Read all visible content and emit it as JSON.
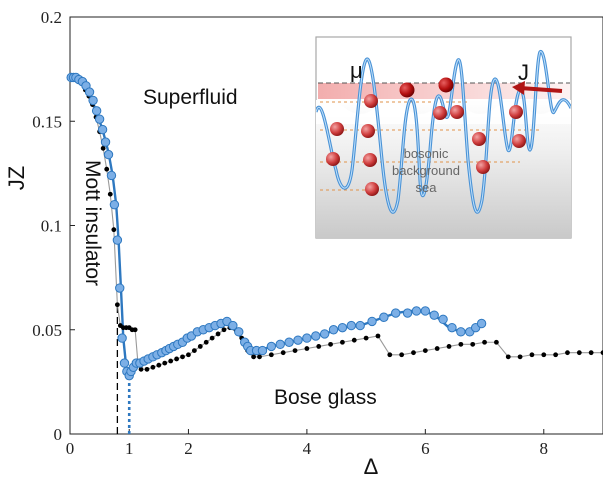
{
  "chart_data": {
    "type": "scatter",
    "xlabel": "Δ",
    "ylabel": "JZ",
    "xlim": [
      0,
      9
    ],
    "ylim": [
      0,
      0.2
    ],
    "xticks": [
      0,
      1,
      2,
      4,
      6,
      8
    ],
    "yticks": [
      0,
      0.05,
      0.1,
      0.15,
      0.2
    ],
    "ytick_labels": [
      "0",
      "0.05",
      "0.1",
      "0.15",
      "0.2"
    ],
    "grid": false,
    "colors": {
      "blue": "#2e78c0",
      "blue_marker": "#7cafe6",
      "black": "#000000",
      "gray_line": "#9a9a9a"
    },
    "series": [
      {
        "style": "blue-circles",
        "x": [
          0.02,
          0.06,
          0.1,
          0.15,
          0.21,
          0.27,
          0.33,
          0.39,
          0.45,
          0.5,
          0.55,
          0.6,
          0.65,
          0.7,
          0.75,
          0.8,
          0.84,
          0.88,
          0.92,
          0.96,
          1.0,
          1.03,
          1.07,
          1.12,
          1.18,
          1.25,
          1.32,
          1.4,
          1.47,
          1.55,
          1.62,
          1.68,
          1.75,
          1.82,
          1.9,
          1.98,
          2.05,
          2.15,
          2.25,
          2.35,
          2.45,
          2.55,
          2.65,
          2.75,
          2.85,
          2.95,
          3.0,
          3.05,
          3.15,
          3.25,
          3.4,
          3.55,
          3.7,
          3.85,
          4.0,
          4.15,
          4.3,
          4.45,
          4.6,
          4.75,
          4.9,
          5.1,
          5.3,
          5.5,
          5.7,
          5.85,
          6.0,
          6.15,
          6.3,
          6.45,
          6.6,
          6.75,
          6.85,
          6.95
        ],
        "y": [
          0.171,
          0.171,
          0.171,
          0.17,
          0.169,
          0.167,
          0.164,
          0.16,
          0.155,
          0.151,
          0.146,
          0.14,
          0.134,
          0.124,
          0.11,
          0.093,
          0.07,
          0.046,
          0.034,
          0.03,
          0.028,
          0.03,
          0.032,
          0.034,
          0.034,
          0.035,
          0.036,
          0.037,
          0.038,
          0.039,
          0.04,
          0.041,
          0.042,
          0.043,
          0.044,
          0.046,
          0.047,
          0.049,
          0.05,
          0.051,
          0.052,
          0.053,
          0.054,
          0.052,
          0.049,
          0.044,
          0.042,
          0.04,
          0.04,
          0.04,
          0.042,
          0.043,
          0.044,
          0.045,
          0.046,
          0.047,
          0.048,
          0.05,
          0.051,
          0.052,
          0.052,
          0.054,
          0.056,
          0.058,
          0.058,
          0.059,
          0.059,
          0.057,
          0.055,
          0.051,
          0.049,
          0.049,
          0.051,
          0.053
        ]
      },
      {
        "style": "black-dots",
        "x": [
          0.02,
          0.08,
          0.14,
          0.2,
          0.26,
          0.32,
          0.38,
          0.44,
          0.5,
          0.56,
          0.62,
          0.68,
          0.74,
          0.8,
          0.85,
          0.9,
          0.95,
          1.0,
          1.05,
          1.1,
          1.15,
          1.2,
          1.3,
          1.4,
          1.5,
          1.6,
          1.7,
          1.8,
          1.9,
          2.0,
          2.1,
          2.2,
          2.3,
          2.4,
          2.5,
          2.6,
          2.7,
          2.8,
          2.9,
          3.0,
          3.1,
          3.2,
          3.4,
          3.6,
          3.8,
          4.0,
          4.2,
          4.4,
          4.6,
          4.8,
          5.0,
          5.2,
          5.4,
          5.6,
          5.8,
          6.0,
          6.2,
          6.4,
          6.6,
          6.8,
          7.0,
          7.2,
          7.4,
          7.6,
          7.8,
          8.0,
          8.2,
          8.4,
          8.6,
          8.8,
          9.0
        ],
        "y": [
          0.171,
          0.171,
          0.17,
          0.168,
          0.165,
          0.162,
          0.158,
          0.152,
          0.145,
          0.137,
          0.127,
          0.115,
          0.098,
          0.062,
          0.052,
          0.051,
          0.051,
          0.051,
          0.05,
          0.05,
          0.033,
          0.031,
          0.031,
          0.032,
          0.033,
          0.034,
          0.035,
          0.036,
          0.037,
          0.038,
          0.04,
          0.042,
          0.044,
          0.046,
          0.048,
          0.05,
          0.051,
          0.05,
          0.046,
          0.04,
          0.037,
          0.037,
          0.038,
          0.039,
          0.04,
          0.041,
          0.042,
          0.043,
          0.044,
          0.045,
          0.046,
          0.047,
          0.038,
          0.038,
          0.039,
          0.04,
          0.041,
          0.042,
          0.043,
          0.043,
          0.044,
          0.044,
          0.037,
          0.037,
          0.038,
          0.038,
          0.038,
          0.039,
          0.039,
          0.039,
          0.039
        ]
      }
    ],
    "blue_fit": {
      "x": [
        0.0,
        0.2,
        0.4,
        0.55,
        0.65,
        0.72,
        0.78,
        0.82,
        0.86,
        0.9,
        0.95,
        1.0,
        1.05,
        1.15,
        1.3,
        1.5,
        1.7,
        1.9,
        2.1,
        2.3,
        2.5,
        2.65,
        2.75,
        2.85,
        2.95,
        3.05,
        3.2,
        3.4,
        3.7,
        4.0,
        4.3,
        4.6,
        4.9,
        5.2,
        5.5,
        5.75,
        6.0,
        6.2,
        6.4,
        6.6,
        6.8,
        6.95
      ],
      "y": [
        0.171,
        0.169,
        0.158,
        0.146,
        0.135,
        0.124,
        0.11,
        0.093,
        0.07,
        0.046,
        0.032,
        0.028,
        0.031,
        0.034,
        0.035,
        0.038,
        0.041,
        0.044,
        0.047,
        0.05,
        0.052,
        0.054,
        0.053,
        0.048,
        0.043,
        0.04,
        0.04,
        0.042,
        0.044,
        0.046,
        0.048,
        0.051,
        0.052,
        0.055,
        0.058,
        0.059,
        0.059,
        0.056,
        0.051,
        0.049,
        0.05,
        0.053
      ]
    },
    "phase_boundaries": [
      {
        "style": "black-dashed",
        "x": 0.8,
        "y_top": 0.062
      },
      {
        "style": "blue-dotted",
        "x": 1.0,
        "y_top": 0.028
      }
    ],
    "annotations": {
      "superfluid": "Superfluid",
      "mott": "Mott insulator",
      "bose_glass": "Bose glass"
    },
    "inset": {
      "mu_label": "μ",
      "j_label": "J",
      "sea_line1": "bosonic",
      "sea_line2": "background",
      "sea_line3": "sea"
    }
  }
}
